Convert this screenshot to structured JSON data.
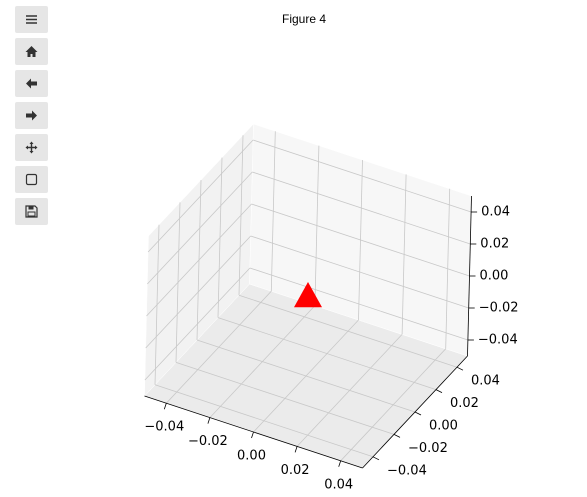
{
  "chart_data": {
    "type": "scatter3d",
    "title": "Figure 4",
    "x": [
      0
    ],
    "y": [
      0
    ],
    "z": [
      0
    ],
    "marker": "triangle",
    "color": "#ff0000",
    "xlim": [
      -0.05,
      0.05
    ],
    "ylim": [
      -0.05,
      0.05
    ],
    "zlim": [
      -0.05,
      0.05
    ],
    "xticks": [
      {
        "value": -0.04,
        "label": "−0.04"
      },
      {
        "value": -0.02,
        "label": "−0.02"
      },
      {
        "value": 0,
        "label": "0.00"
      },
      0.02,
      0.04
    ],
    "yticks": [
      {
        "value": -0.04,
        "label": "−0.04"
      },
      {
        "value": -0.02,
        "label": "−0.02"
      },
      {
        "value": 0,
        "label": "0.00"
      },
      0.02,
      0.04
    ],
    "zticks": [
      {
        "value": -0.04,
        "label": "−0.04"
      },
      {
        "value": -0.02,
        "label": "−0.02"
      },
      {
        "value": 0,
        "label": "0.00"
      },
      0.02,
      0.04
    ],
    "grid": true
  }
}
